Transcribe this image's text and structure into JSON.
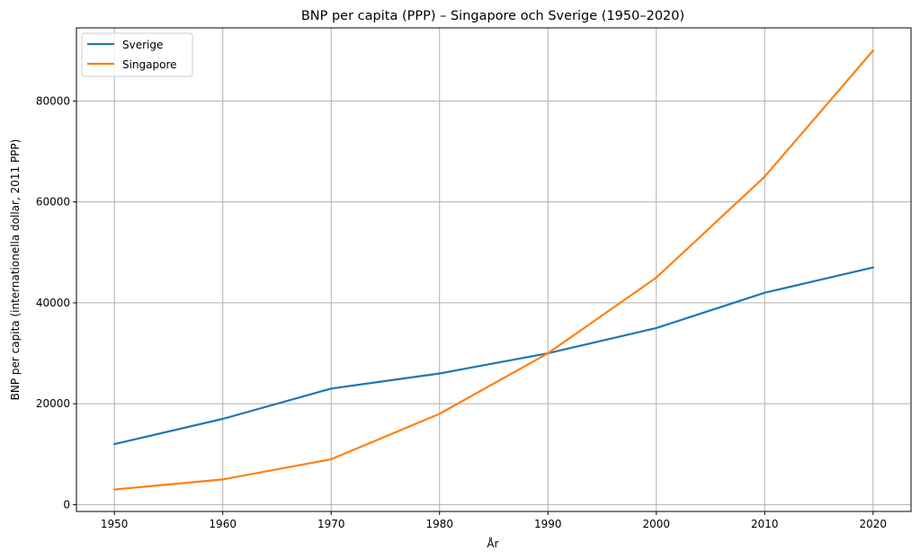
{
  "chart_data": {
    "type": "line",
    "title": "BNP per capita (PPP) – Singapore och Sverige (1950–2020)",
    "xlabel": "År",
    "ylabel": "BNP per capita (internationella dollar, 2011 PPP)",
    "x": [
      1950,
      1960,
      1970,
      1980,
      1990,
      2000,
      2010,
      2020
    ],
    "xticks": [
      "1950",
      "1960",
      "1970",
      "1980",
      "1990",
      "2000",
      "2010",
      "2020"
    ],
    "yticks": [
      "0",
      "20000",
      "40000",
      "60000",
      "80000"
    ],
    "xlim": [
      1946.5,
      2023.5
    ],
    "ylim": [
      -1350,
      94500
    ],
    "grid": true,
    "legend_position": "top-left",
    "series": [
      {
        "name": "Sverige",
        "color": "#1f77b4",
        "values": [
          12000,
          17000,
          23000,
          26000,
          30000,
          35000,
          42000,
          47000
        ]
      },
      {
        "name": "Singapore",
        "color": "#ff7f0e",
        "values": [
          3000,
          5000,
          9000,
          18000,
          30000,
          45000,
          65000,
          90000
        ]
      }
    ]
  }
}
